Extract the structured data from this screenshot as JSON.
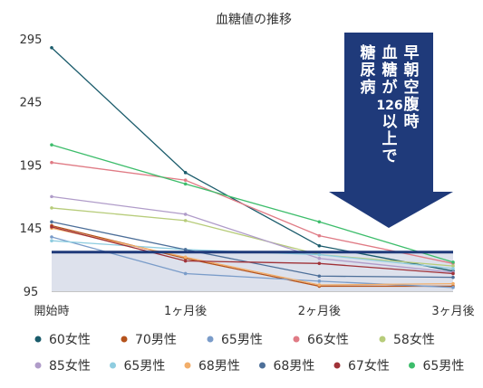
{
  "chart_data": {
    "type": "line",
    "title": "血糖値の推移",
    "x": [
      "開始時",
      "1ヶ月後",
      "2ヶ月後",
      "3ヶ月後"
    ],
    "ylim": [
      95,
      300
    ],
    "yticks": [
      95,
      145,
      195,
      245,
      295
    ],
    "grid": false,
    "legend": "bottom",
    "threshold": {
      "value": 126,
      "color": "#1f3a7a",
      "label_columns": [
        "早朝空腹時",
        "血糖が126以上で",
        "糖尿病"
      ]
    },
    "series": [
      {
        "name": "60女性",
        "color": "#1a5b6b",
        "values": [
          288,
          189,
          131,
          111
        ]
      },
      {
        "name": "70男性",
        "color": "#b5531c",
        "values": [
          147,
          121,
          99,
          99
        ]
      },
      {
        "name": "65男性",
        "color": "#7a9cc9",
        "values": [
          138,
          109,
          103,
          98
        ]
      },
      {
        "name": "66女性",
        "color": "#e07b85",
        "values": [
          197,
          183,
          139,
          117
        ]
      },
      {
        "name": "58女性",
        "color": "#b7cc7a",
        "values": [
          161,
          151,
          124,
          115
        ]
      },
      {
        "name": "85女性",
        "color": "#b09cc9",
        "values": [
          170,
          156,
          121,
          110
        ]
      },
      {
        "name": "65男性",
        "color": "#8fcde0",
        "values": [
          135,
          128,
          124,
          113
        ]
      },
      {
        "name": "68男性",
        "color": "#f2ae6a",
        "values": [
          145,
          122,
          100,
          101
        ]
      },
      {
        "name": "68男性",
        "color": "#4d6f99",
        "values": [
          150,
          128,
          107,
          106
        ]
      },
      {
        "name": "67女性",
        "color": "#a03238",
        "values": [
          146,
          119,
          117,
          109
        ]
      },
      {
        "name": "65男性",
        "color": "#3dbd6b",
        "values": [
          211,
          180,
          150,
          118
        ]
      }
    ]
  }
}
